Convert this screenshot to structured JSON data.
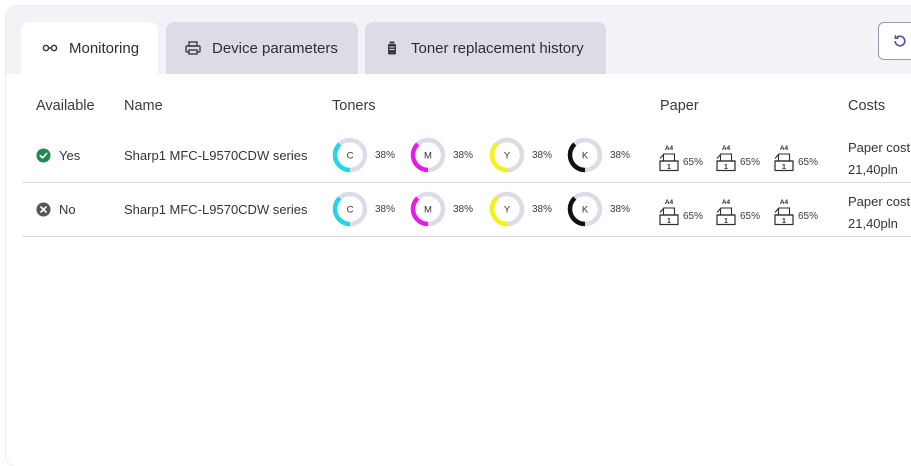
{
  "tabs": [
    {
      "label": "Monitoring",
      "icon": "glasses-icon",
      "active": true
    },
    {
      "label": "Device parameters",
      "icon": "printer-icon",
      "active": false
    },
    {
      "label": "Toner replacement history",
      "icon": "toner-icon",
      "active": false
    }
  ],
  "refresh_icon": "refresh-icon",
  "table": {
    "headers": {
      "available": "Available",
      "name": "Name",
      "toners": "Toners",
      "paper": "Paper",
      "costs": "Costs"
    },
    "rows": [
      {
        "available": "Yes",
        "status": "ok",
        "name": "Sharp1 MFC-L9570CDW series",
        "toners": [
          {
            "letter": "C",
            "pct": "38%",
            "level": 0.38,
            "color": "#23d5e6"
          },
          {
            "letter": "M",
            "pct": "38%",
            "level": 0.38,
            "color": "#e51de5"
          },
          {
            "letter": "Y",
            "pct": "38%",
            "level": 0.38,
            "color": "#f2f21c"
          },
          {
            "letter": "K",
            "pct": "38%",
            "level": 0.38,
            "color": "#111111"
          }
        ],
        "paper": [
          {
            "size": "A4",
            "tray": "1",
            "pct": "65%"
          },
          {
            "size": "A4",
            "tray": "1",
            "pct": "65%"
          },
          {
            "size": "A4",
            "tray": "1",
            "pct": "65%"
          }
        ],
        "cost_label": "Paper cost",
        "cost_value": "21,40pln"
      },
      {
        "available": "No",
        "status": "error",
        "name": "Sharp1 MFC-L9570CDW series",
        "toners": [
          {
            "letter": "C",
            "pct": "38%",
            "level": 0.38,
            "color": "#23d5e6"
          },
          {
            "letter": "M",
            "pct": "38%",
            "level": 0.38,
            "color": "#e51de5"
          },
          {
            "letter": "Y",
            "pct": "38%",
            "level": 0.38,
            "color": "#f2f21c"
          },
          {
            "letter": "K",
            "pct": "38%",
            "level": 0.38,
            "color": "#111111"
          }
        ],
        "paper": [
          {
            "size": "A4",
            "tray": "1",
            "pct": "65%"
          },
          {
            "size": "A4",
            "tray": "1",
            "pct": "65%"
          },
          {
            "size": "A4",
            "tray": "1",
            "pct": "65%"
          }
        ],
        "cost_label": "Paper cost",
        "cost_value": "21,40pln"
      }
    ]
  },
  "colors": {
    "ok": "#1e8a4c",
    "error": "#55555f",
    "ring_track": "#dcdce6",
    "accent_border": "#9a97b0"
  }
}
